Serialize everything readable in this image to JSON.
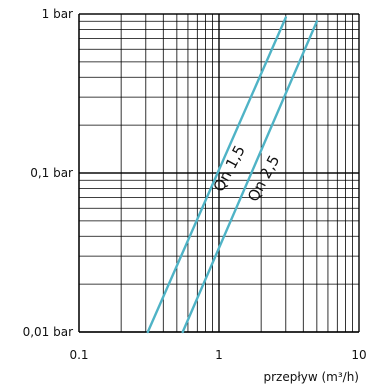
{
  "chart_data": {
    "type": "line",
    "xscale": "log",
    "yscale": "log",
    "xlim": [
      0.1,
      10
    ],
    "ylim": [
      0.01,
      1
    ],
    "grid": true,
    "xlabel": "przepływ (m³/h)",
    "ylabel": "",
    "x_ticks": [
      {
        "value": 0.1,
        "label": "0.1"
      },
      {
        "value": 1,
        "label": "1"
      },
      {
        "value": 10,
        "label": "10"
      }
    ],
    "y_ticks": [
      {
        "value": 1,
        "label": "1 bar"
      },
      {
        "value": 0.1,
        "label": "0,1 bar"
      },
      {
        "value": 0.01,
        "label": "0,01 bar"
      }
    ],
    "series": [
      {
        "name": "Qn 1,5",
        "color": "#4fb3c6",
        "x": [
          0.31,
          3.0
        ],
        "y": [
          0.01,
          0.95
        ]
      },
      {
        "name": "Qn 2,5",
        "color": "#4fb3c6",
        "x": [
          0.55,
          5.0
        ],
        "y": [
          0.01,
          0.9
        ]
      }
    ]
  }
}
